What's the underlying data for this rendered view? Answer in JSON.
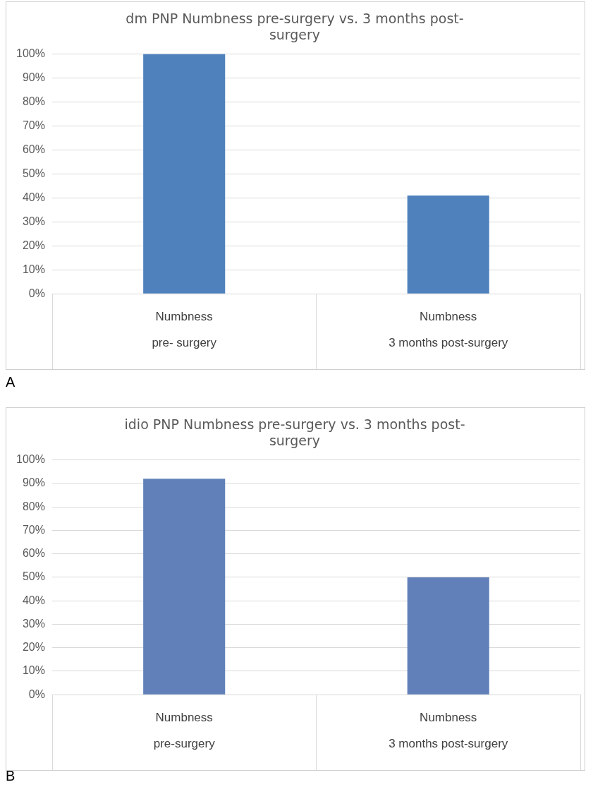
{
  "chart_data": [
    {
      "type": "bar",
      "title": "dm PNP Numbness pre-surgery vs. 3 months post-surgery",
      "categories": [
        "Numbness\npre- surgery",
        "Numbness\n3 months post-surgery"
      ],
      "values": [
        100,
        41
      ],
      "color": "#4f81bd",
      "ylim": [
        0,
        100
      ],
      "yticks": [
        {
          "value": 0,
          "label": "0%"
        },
        {
          "value": 10,
          "label": "10%"
        },
        {
          "value": 20,
          "label": "20%"
        },
        {
          "value": 30,
          "label": "30%"
        },
        {
          "value": 40,
          "label": "40%"
        },
        {
          "value": 50,
          "label": "50%"
        },
        {
          "value": 60,
          "label": "60%"
        },
        {
          "value": 70,
          "label": "70%"
        },
        {
          "value": 80,
          "label": "80%"
        },
        {
          "value": 90,
          "label": "90%"
        },
        {
          "value": 100,
          "label": "100%"
        }
      ],
      "grid": "y",
      "annotations": [
        "A"
      ]
    },
    {
      "type": "bar",
      "title": "idio PNP Numbness pre-surgery vs. 3 months post-surgery",
      "categories": [
        "Numbness\npre-surgery",
        "Numbness\n3 months post-surgery"
      ],
      "values": [
        92,
        50
      ],
      "color": "#6180b9",
      "ylim": [
        0,
        100
      ],
      "yticks": [
        {
          "value": 0,
          "label": "0%"
        },
        {
          "value": 10,
          "label": "10%"
        },
        {
          "value": 20,
          "label": "20%"
        },
        {
          "value": 30,
          "label": "30%"
        },
        {
          "value": 40,
          "label": "40%"
        },
        {
          "value": 50,
          "label": "50%"
        },
        {
          "value": 60,
          "label": "60%"
        },
        {
          "value": 70,
          "label": "70%"
        },
        {
          "value": 80,
          "label": "80%"
        },
        {
          "value": 90,
          "label": "90%"
        },
        {
          "value": 100,
          "label": "100%"
        }
      ],
      "grid": "y",
      "annotations": [
        "B"
      ]
    }
  ]
}
